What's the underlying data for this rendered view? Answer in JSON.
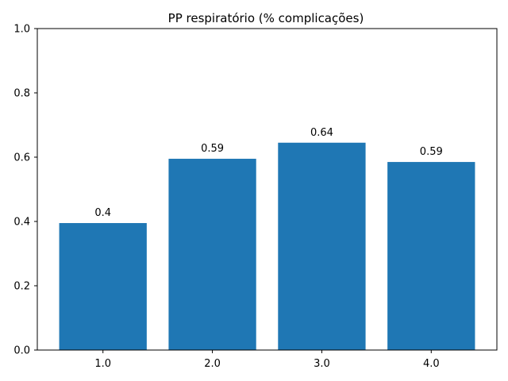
{
  "chart_data": {
    "type": "bar",
    "title": "PP respiratório (% complicações)",
    "xlabel": "",
    "ylabel": "",
    "categories": [
      "1.0",
      "2.0",
      "3.0",
      "4.0"
    ],
    "values": [
      0.395,
      0.595,
      0.645,
      0.585
    ],
    "data_labels": [
      "0.4",
      "0.59",
      "0.64",
      "0.59"
    ],
    "ylim": [
      0,
      1.0
    ],
    "yticks": [
      "0.0",
      "0.2",
      "0.4",
      "0.6",
      "0.8",
      "1.0"
    ],
    "bar_color": "#1f77b4",
    "grid": false,
    "legend": "none"
  }
}
